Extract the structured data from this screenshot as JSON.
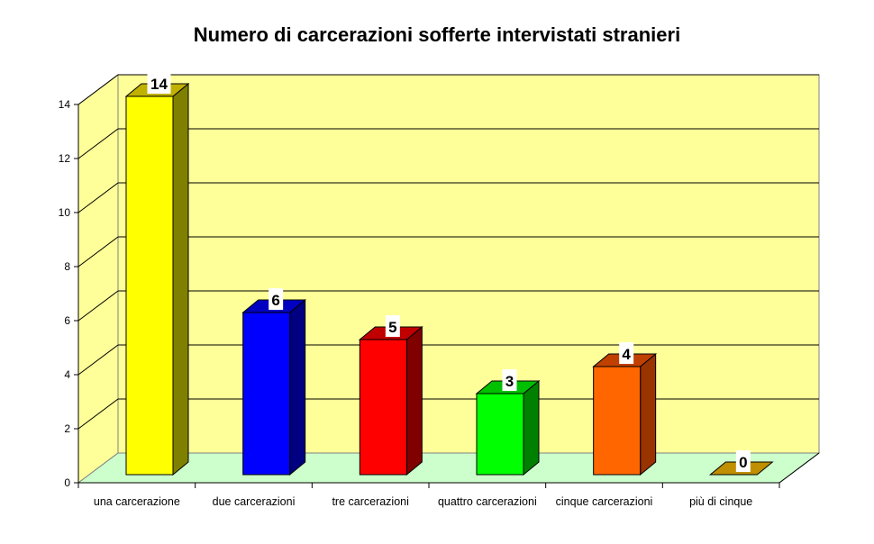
{
  "chart_data": {
    "type": "bar",
    "title": "Numero di carcerazioni sofferte intervistati stranieri",
    "xlabel": "",
    "ylabel": "",
    "categories": [
      "una carcerazione",
      "due carcerazioni",
      "tre carcerazioni",
      "quattro carcerazioni",
      "cinque carcerazioni",
      "più di cinque"
    ],
    "values": [
      14,
      6,
      5,
      3,
      4,
      0
    ],
    "colors": [
      "#FFFF00",
      "#0000FF",
      "#FF0000",
      "#00FF00",
      "#FF6600",
      "#FFCC00"
    ],
    "side_colors": [
      "#808000",
      "#000080",
      "#800000",
      "#008000",
      "#993300",
      "#998000"
    ],
    "top_colors": [
      "#C0B000",
      "#0000C0",
      "#C00000",
      "#00C000",
      "#C04000",
      "#C09000"
    ],
    "ylim": [
      0,
      14
    ],
    "yticks": [
      0,
      2,
      4,
      6,
      8,
      10,
      12,
      14
    ],
    "grid": true,
    "legend": "none",
    "style": "3d",
    "wall_color": "#FFFF99",
    "floor_color": "#CCFFCC"
  }
}
